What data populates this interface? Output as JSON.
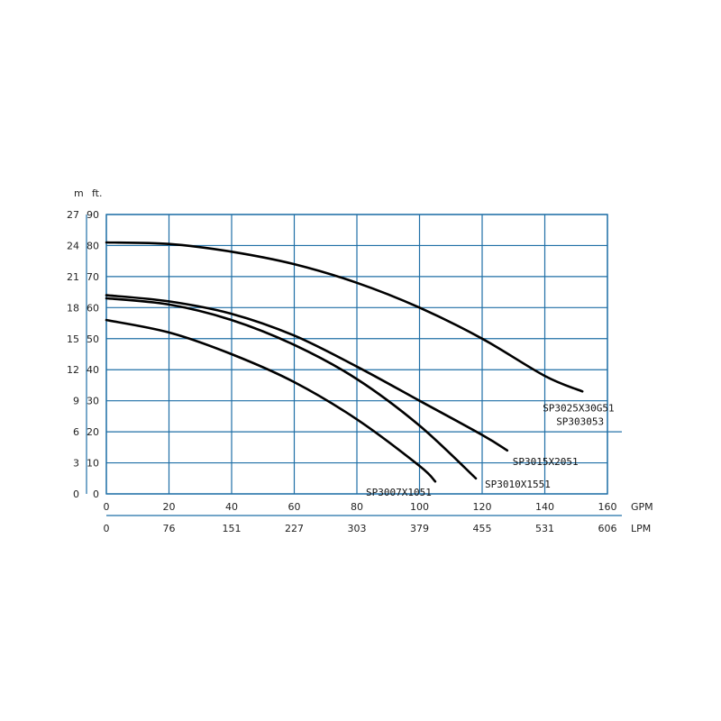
{
  "chart_data": {
    "type": "line",
    "units": {
      "left_outer": "m",
      "left_inner": "ft.",
      "bottom_primary": "GPM",
      "bottom_secondary": "LPM"
    },
    "y_ticks_m": [
      "27",
      "24",
      "21",
      "18",
      "15",
      "12",
      "9",
      "6",
      "3",
      "0"
    ],
    "y_ticks_ft": [
      "90",
      "80",
      "70",
      "60",
      "50",
      "40",
      "30",
      "20",
      "10",
      "0"
    ],
    "x_ticks_gpm": [
      "0",
      "20",
      "40",
      "60",
      "80",
      "100",
      "120",
      "140",
      "160"
    ],
    "x_ticks_lpm": [
      "0",
      "76",
      "151",
      "227",
      "303",
      "379",
      "455",
      "531",
      "606"
    ],
    "xlim_gpm": [
      0,
      160
    ],
    "ylim_ft": [
      0,
      90
    ],
    "grid": true,
    "series": [
      {
        "name": "SP3007X1051",
        "label_lines": [
          "SP3007X1051"
        ],
        "x": [
          0,
          20,
          40,
          60,
          80,
          100,
          105
        ],
        "y": [
          56,
          52,
          45,
          36,
          24,
          9,
          4
        ]
      },
      {
        "name": "SP3010X1551",
        "label_lines": [
          "SP3010X1551"
        ],
        "x": [
          0,
          20,
          40,
          60,
          80,
          100,
          118
        ],
        "y": [
          63,
          61,
          56,
          48,
          37,
          22,
          5
        ]
      },
      {
        "name": "SP3015X2051",
        "label_lines": [
          "SP3015X2051"
        ],
        "x": [
          0,
          20,
          40,
          60,
          80,
          100,
          120,
          128
        ],
        "y": [
          64,
          62,
          58,
          51,
          41,
          30,
          19,
          14
        ]
      },
      {
        "name": "SP3025X30G51",
        "label_lines": [
          "SP3025X30G51",
          "SP303053"
        ],
        "x": [
          0,
          20,
          40,
          60,
          80,
          100,
          120,
          140,
          152
        ],
        "y": [
          81,
          80.5,
          78,
          74,
          68,
          60,
          50,
          38,
          33
        ]
      }
    ]
  }
}
